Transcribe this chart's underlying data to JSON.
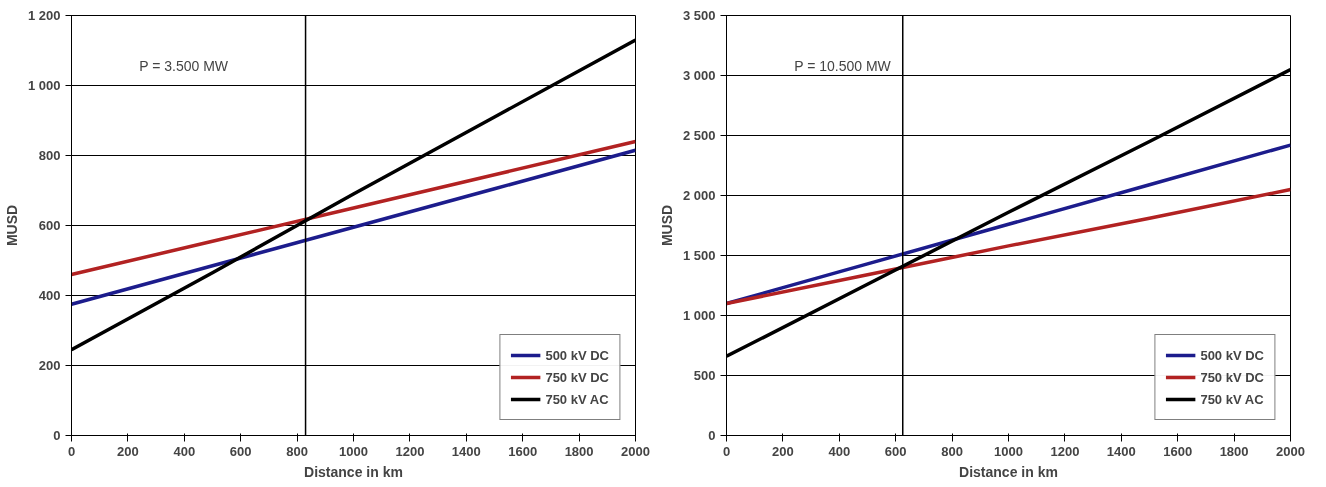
{
  "chart_data": [
    {
      "type": "line",
      "xlabel": "Distance in km",
      "ylabel": "MUSD",
      "annotations": [
        "P = 3.500 MW"
      ],
      "grid": "y",
      "legend": "bottom right",
      "marker": "none",
      "line_style": "solid",
      "x": [
        0,
        500,
        1000,
        1500,
        2000
      ],
      "xlim": [
        0,
        2000
      ],
      "xticks": [
        0,
        200,
        400,
        600,
        800,
        1000,
        1200,
        1400,
        1600,
        1800,
        2000
      ],
      "ylim": [
        0,
        1200
      ],
      "yticks": [
        0,
        200,
        400,
        600,
        800,
        {
          "value": 1000,
          "label": "1 000"
        },
        {
          "value": 1200,
          "label": "1 200"
        }
      ],
      "ref_lines": [
        {
          "axis": "x",
          "value": 830,
          "color": "#000000"
        }
      ],
      "series": [
        {
          "name": "500 kV DC",
          "color": "#1c1c8c",
          "values": [
            375,
            485,
            595,
            705,
            815
          ]
        },
        {
          "name": "750 kV DC",
          "color": "#b22222",
          "values": [
            460,
            555,
            650,
            745,
            840
          ]
        },
        {
          "name": "750 kV AC",
          "color": "#000000",
          "values": [
            245,
            465,
            690,
            910,
            1130
          ]
        }
      ]
    },
    {
      "type": "line",
      "xlabel": "Distance in km",
      "ylabel": "MUSD",
      "annotations": [
        "P = 10.500 MW"
      ],
      "grid": "y",
      "legend": "bottom right",
      "marker": "none",
      "line_style": "solid",
      "x": [
        0,
        500,
        1000,
        1500,
        2000
      ],
      "xlim": [
        0,
        2000
      ],
      "xticks": [
        0,
        200,
        400,
        600,
        800,
        1000,
        1200,
        1400,
        1600,
        1800,
        2000
      ],
      "ylim": [
        0,
        3500
      ],
      "yticks": [
        0,
        500,
        {
          "value": 1000,
          "label": "1 000"
        },
        {
          "value": 1500,
          "label": "1 500"
        },
        {
          "value": 2000,
          "label": "2 000"
        },
        {
          "value": 2500,
          "label": "2 500"
        },
        {
          "value": 3000,
          "label": "3 000"
        },
        {
          "value": 3500,
          "label": "3 500"
        }
      ],
      "ref_lines": [
        {
          "axis": "x",
          "value": 625,
          "color": "#000000"
        }
      ],
      "series": [
        {
          "name": "500 kV DC",
          "color": "#1c1c8c",
          "values": [
            1100,
            1430,
            1760,
            2090,
            2420
          ]
        },
        {
          "name": "750 kV DC",
          "color": "#b22222",
          "values": [
            1100,
            1340,
            1580,
            1810,
            2050
          ]
        },
        {
          "name": "750 kV AC",
          "color": "#000000",
          "values": [
            660,
            1260,
            1860,
            2450,
            3050
          ]
        }
      ]
    }
  ]
}
